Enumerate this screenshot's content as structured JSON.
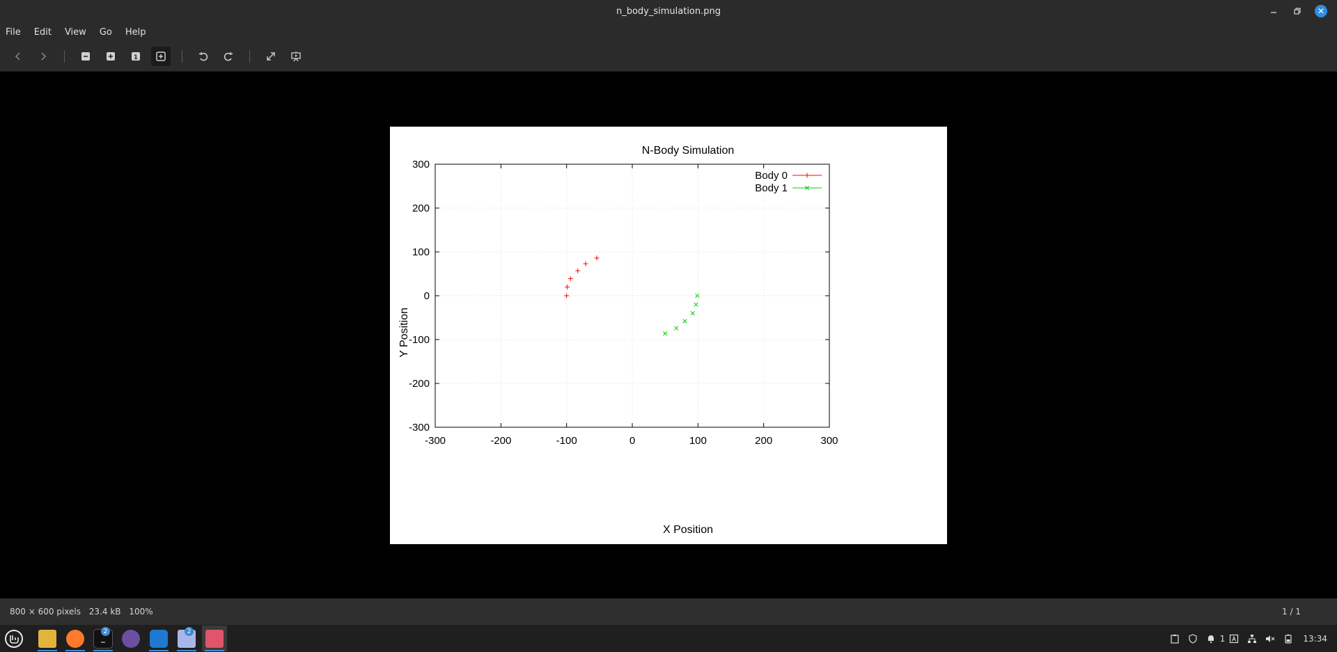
{
  "window": {
    "title": "n_body_simulation.png"
  },
  "menu": [
    "File",
    "Edit",
    "View",
    "Go",
    "Help"
  ],
  "toolbar": {
    "icons": [
      "previous-icon",
      "next-icon",
      "zoom-out-icon",
      "zoom-in-icon",
      "zoom-100-icon",
      "best-fit-icon",
      "rotate-left-icon",
      "rotate-right-icon",
      "fullscreen-icon",
      "slideshow-icon"
    ],
    "zoom_100_glyph": "1"
  },
  "chart_data": {
    "type": "scatter",
    "title": "N-Body Simulation",
    "xlabel": "X Position",
    "ylabel": "Y Position",
    "xlim": [
      -300,
      300
    ],
    "ylim": [
      -300,
      300
    ],
    "xticks": [
      "-300",
      "-200",
      "-100",
      "0",
      "100",
      "200",
      "300"
    ],
    "yticks": [
      "-300",
      "-200",
      "-100",
      "0",
      "100",
      "200",
      "300"
    ],
    "grid": true,
    "legend_position": "top-right",
    "series": [
      {
        "name": "Body 0",
        "marker": "+",
        "color": "#ff0000",
        "points": [
          [
            -100,
            0
          ],
          [
            -99,
            20
          ],
          [
            -94,
            39
          ],
          [
            -83,
            57
          ],
          [
            -71,
            73
          ],
          [
            -54,
            86
          ]
        ]
      },
      {
        "name": "Body 1",
        "marker": "x",
        "color": "#00cc00",
        "points": [
          [
            99,
            0
          ],
          [
            97,
            -20
          ],
          [
            92,
            -40
          ],
          [
            80,
            -58
          ],
          [
            67,
            -74
          ],
          [
            50,
            -86
          ]
        ]
      }
    ]
  },
  "status": {
    "dimensions": "800 × 600 pixels",
    "size": "23.4 kB",
    "zoom": "100%",
    "index": "1 / 1"
  },
  "taskbar": {
    "apps": [
      {
        "name": "menu",
        "badge": ""
      },
      {
        "name": "files",
        "badge": ""
      },
      {
        "name": "firefox",
        "badge": ""
      },
      {
        "name": "terminal",
        "badge": "2"
      },
      {
        "name": "github",
        "badge": ""
      },
      {
        "name": "vscode",
        "badge": ""
      },
      {
        "name": "text-editor",
        "badge": "2"
      },
      {
        "name": "image-viewer",
        "badge": ""
      }
    ],
    "tray_notification_count": "1",
    "clock": "13:34"
  },
  "colors": {
    "accent": "#3d8bd4",
    "close": "#2f8fe0",
    "chrome": "#2b2b2b"
  }
}
